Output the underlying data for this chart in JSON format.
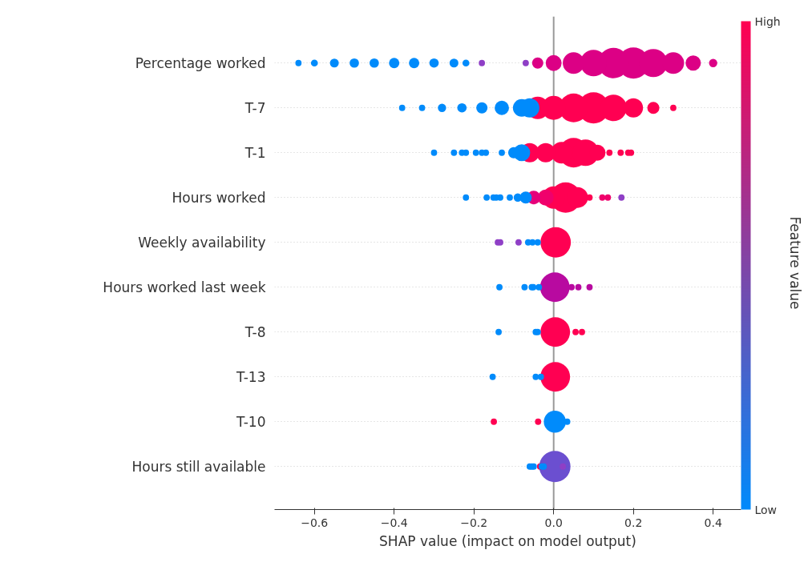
{
  "chart_data": {
    "type": "bubble",
    "orientation": "horizontal",
    "categories": [
      "Percentage worked",
      "T-7",
      "T-1",
      "Hours worked",
      "Weekly availability",
      "Hours worked last week",
      "T-8",
      "T-13",
      "T-10",
      "Hours still available"
    ],
    "xlabel": "SHAP value (impact on model output)",
    "clabel": "Feature value",
    "xlim": [
      -0.7,
      0.47
    ],
    "xticks": [
      {
        "value": -0.6,
        "label": "−0.6"
      },
      {
        "value": -0.4,
        "label": "−0.4"
      },
      {
        "value": -0.2,
        "label": "−0.2"
      },
      {
        "value": 0.0,
        "label": "0.0"
      },
      {
        "value": 0.2,
        "label": "0.2"
      },
      {
        "value": 0.4,
        "label": "0.4"
      }
    ],
    "clim": [
      0,
      1
    ],
    "cticks": [
      {
        "value": 0,
        "label": "Low"
      },
      {
        "value": 1,
        "label": "High"
      }
    ],
    "grid": "y",
    "marker": "circle",
    "ref_lines": [
      {
        "axis": "x",
        "value": 0,
        "color": "#999999"
      }
    ],
    "series": [
      {
        "x": [
          "Percentage worked",
          "Percentage worked",
          "Percentage worked",
          "Percentage worked",
          "Percentage worked",
          "Percentage worked",
          "Percentage worked",
          "Percentage worked",
          "Percentage worked",
          "Percentage worked",
          "Percentage worked",
          "Percentage worked",
          "Percentage worked",
          "Percentage worked",
          "Percentage worked",
          "Percentage worked",
          "Percentage worked",
          "Percentage worked",
          "Percentage worked",
          "Percentage worked",
          "Percentage worked",
          "Percentage worked"
        ],
        "values": [
          -0.64,
          -0.6,
          -0.55,
          -0.5,
          -0.45,
          -0.4,
          -0.35,
          -0.3,
          -0.25,
          -0.22,
          -0.18,
          -0.07,
          -0.04,
          0.0,
          0.05,
          0.1,
          0.15,
          0.2,
          0.25,
          0.3,
          0.35,
          0.4
        ],
        "sizes": [
          0.04,
          0.05,
          0.08,
          0.09,
          0.09,
          0.11,
          0.11,
          0.09,
          0.08,
          0.05,
          0.04,
          0.04,
          0.13,
          0.26,
          0.48,
          0.72,
          0.95,
          1,
          0.81,
          0.48,
          0.24,
          0.07
        ],
        "colors": [
          "#008bfb",
          "#008bfb",
          "#008bfb",
          "#008bfb",
          "#008bfb",
          "#008bfb",
          "#008bfb",
          "#008bfb",
          "#008bfb",
          "#008bfb",
          "#8f3fc6",
          "#8f3fc6",
          "#dc0085",
          "#dc0085",
          "#dc0085",
          "#dc0085",
          "#dc0085",
          "#dc0085",
          "#dc0085",
          "#dc0085",
          "#dc0085",
          "#dc0085"
        ]
      },
      {
        "x": [
          "T-7",
          "T-7",
          "T-7",
          "T-7",
          "T-7",
          "T-7",
          "T-7",
          "T-7",
          "T-7",
          "T-7",
          "T-7",
          "T-7",
          "T-7",
          "T-7",
          "T-7",
          "T-7"
        ],
        "values": [
          -0.38,
          -0.33,
          -0.28,
          -0.23,
          -0.18,
          -0.13,
          -0.08,
          -0.06,
          -0.04,
          0.0,
          0.05,
          0.1,
          0.15,
          0.2,
          0.25,
          0.3
        ],
        "sizes": [
          0.04,
          0.04,
          0.07,
          0.09,
          0.13,
          0.21,
          0.32,
          0.38,
          0.52,
          0.59,
          0.85,
          1,
          0.72,
          0.38,
          0.15,
          0.04
        ],
        "colors": [
          "#008bfb",
          "#008bfb",
          "#008bfb",
          "#008bfb",
          "#008bfb",
          "#008bfb",
          "#008bfb",
          "#008bfb",
          "#ff0052",
          "#ff0052",
          "#ff0052",
          "#ff0052",
          "#ff0052",
          "#ff0052",
          "#ff0052",
          "#ff0052"
        ]
      },
      {
        "x": [
          "T-1",
          "T-1",
          "T-1",
          "T-1",
          "T-1",
          "T-1",
          "T-1",
          "T-1",
          "T-1",
          "T-1",
          "T-1",
          "T-1",
          "T-1",
          "T-1",
          "T-1",
          "T-1",
          "T-1",
          "T-1",
          "T-1",
          "T-1"
        ],
        "values": [
          -0.3,
          -0.25,
          -0.23,
          -0.22,
          -0.195,
          -0.18,
          -0.17,
          -0.13,
          -0.1,
          -0.08,
          -0.06,
          -0.02,
          0.02,
          0.05,
          0.08,
          0.11,
          0.14,
          0.168,
          0.187,
          0.194
        ],
        "sizes": [
          0.04,
          0.04,
          0.04,
          0.04,
          0.04,
          0.04,
          0.04,
          0.04,
          0.13,
          0.29,
          0.38,
          0.38,
          0.48,
          0.9,
          0.72,
          0.26,
          0.04,
          0.04,
          0.04,
          0.04
        ],
        "colors": [
          "#008bfb",
          "#008bfb",
          "#008bfb",
          "#008bfb",
          "#008bfb",
          "#008bfb",
          "#008bfb",
          "#008bfb",
          "#008bfb",
          "#008bfb",
          "#ff0052",
          "#ff0052",
          "#ff0052",
          "#ff0052",
          "#ff0052",
          "#ff0052",
          "#ff0052",
          "#ff0052",
          "#ff0052",
          "#ff0052"
        ]
      },
      {
        "x": [
          "Hours worked",
          "Hours worked",
          "Hours worked",
          "Hours worked",
          "Hours worked",
          "Hours worked",
          "Hours worked",
          "Hours worked",
          "Hours worked",
          "Hours worked",
          "Hours worked",
          "Hours worked",
          "Hours worked",
          "Hours worked",
          "Hours worked",
          "Hours worked",
          "Hours worked"
        ],
        "values": [
          -0.22,
          -0.168,
          -0.151,
          -0.144,
          -0.134,
          -0.11,
          -0.09,
          -0.07,
          -0.05,
          -0.02,
          0.0,
          0.03,
          0.06,
          0.09,
          0.122,
          0.136,
          0.17
        ],
        "sizes": [
          0.04,
          0.04,
          0.04,
          0.04,
          0.04,
          0.04,
          0.07,
          0.15,
          0.19,
          0.26,
          0.52,
          0.95,
          0.44,
          0.04,
          0.04,
          0.04,
          0.04
        ],
        "colors": [
          "#008bfb",
          "#008bfb",
          "#008bfb",
          "#008bfb",
          "#008bfb",
          "#008bfb",
          "#008bfb",
          "#008bfb",
          "#e6007a",
          "#f0006c",
          "#ff0052",
          "#ff0052",
          "#ff0052",
          "#ff0052",
          "#f0006c",
          "#f0006c",
          "#8f3fc6"
        ]
      },
      {
        "x": [
          "Weekly availability",
          "Weekly availability",
          "Weekly availability",
          "Weekly availability",
          "Weekly availability",
          "Weekly availability",
          "Weekly availability"
        ],
        "values": [
          -0.14,
          -0.134,
          -0.088,
          -0.064,
          -0.053,
          -0.04,
          0.005
        ],
        "sizes": [
          0.04,
          0.04,
          0.04,
          0.04,
          0.04,
          0.04,
          0.95
        ],
        "colors": [
          "#8f3fc6",
          "#8f3fc6",
          "#8f3fc6",
          "#008bfb",
          "#008bfb",
          "#008bfb",
          "#ff0052"
        ]
      },
      {
        "x": [
          "Hours worked last week",
          "Hours worked last week",
          "Hours worked last week",
          "Hours worked last week",
          "Hours worked last week",
          "Hours worked last week",
          "Hours worked last week",
          "Hours worked last week",
          "Hours worked last week"
        ],
        "values": [
          -0.136,
          -0.073,
          -0.055,
          -0.051,
          -0.037,
          0.003,
          0.045,
          0.062,
          0.09
        ],
        "sizes": [
          0.04,
          0.04,
          0.04,
          0.04,
          0.04,
          0.9,
          0.04,
          0.04,
          0.04
        ],
        "colors": [
          "#008bfb",
          "#008bfb",
          "#008bfb",
          "#008bfb",
          "#008bfb",
          "#b80aa0",
          "#b80aa0",
          "#b80aa0",
          "#b80aa0"
        ]
      },
      {
        "x": [
          "T-8",
          "T-8",
          "T-8",
          "T-8",
          "T-8",
          "T-8"
        ],
        "values": [
          -0.138,
          -0.045,
          -0.04,
          0.004,
          0.055,
          0.071
        ],
        "sizes": [
          0.04,
          0.04,
          0.04,
          0.9,
          0.04,
          0.04
        ],
        "colors": [
          "#008bfb",
          "#008bfb",
          "#008bfb",
          "#ff0052",
          "#ff0052",
          "#ff0052"
        ]
      },
      {
        "x": [
          "T-13",
          "T-13",
          "T-13",
          "T-13"
        ],
        "values": [
          -0.153,
          -0.045,
          -0.032,
          0.004
        ],
        "sizes": [
          0.04,
          0.04,
          0.04,
          0.9
        ],
        "colors": [
          "#008bfb",
          "#008bfb",
          "#008bfb",
          "#ff0052"
        ]
      },
      {
        "x": [
          "T-10",
          "T-10",
          "T-10",
          "T-10"
        ],
        "values": [
          -0.15,
          -0.039,
          0.003,
          0.034
        ],
        "sizes": [
          0.04,
          0.04,
          0.5,
          0.04
        ],
        "colors": [
          "#ff0052",
          "#ff0052",
          "#008bfb",
          "#008bfb"
        ]
      },
      {
        "x": [
          "Hours still available",
          "Hours still available",
          "Hours still available",
          "Hours still available",
          "Hours still available",
          "Hours still available",
          "Hours still available",
          "Hours still available"
        ],
        "values": [
          -0.06,
          -0.055,
          -0.05,
          -0.034,
          -0.03,
          -0.025,
          0.003,
          0.023
        ],
        "sizes": [
          0.04,
          0.04,
          0.04,
          0.04,
          0.04,
          0.04,
          1,
          0.04
        ],
        "colors": [
          "#008bfb",
          "#008bfb",
          "#008bfb",
          "#ff0052",
          "#008bfb",
          "#008bfb",
          "#6b4fd0",
          "#8f3fc6"
        ]
      }
    ]
  }
}
